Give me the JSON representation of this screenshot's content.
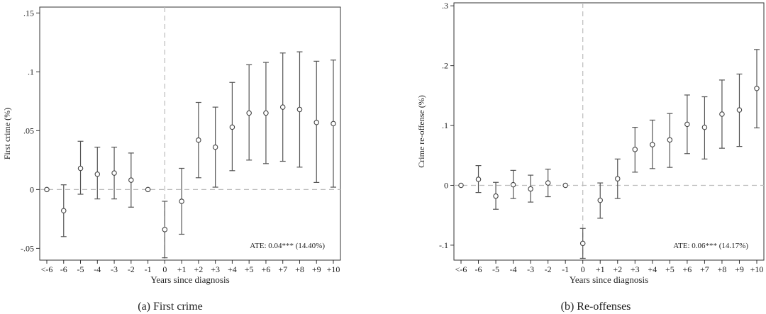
{
  "chart_data": [
    {
      "type": "scatter",
      "subtitle": "(a) First crime",
      "xlabel": "Years since diagnosis",
      "ylabel": "First crime (%)",
      "ylim": [
        -0.06,
        0.155
      ],
      "yticks": [
        -0.05,
        0,
        0.05,
        0.1,
        0.15
      ],
      "ytick_labels": [
        "-.05",
        "0",
        ".05",
        ".1",
        ".15"
      ],
      "categories": [
        "<-6",
        "-6",
        "-5",
        "-4",
        "-3",
        "-2",
        "-1",
        "0",
        "+1",
        "+2",
        "+3",
        "+4",
        "+5",
        "+6",
        "+7",
        "+8",
        "+9",
        "+10"
      ],
      "estimates": [
        0,
        -0.018,
        0.018,
        0.013,
        0.014,
        0.008,
        0,
        -0.034,
        -0.01,
        0.042,
        0.036,
        0.053,
        0.065,
        0.065,
        0.07,
        0.068,
        0.057,
        0.056
      ],
      "ci_low": [
        null,
        -0.04,
        -0.004,
        -0.008,
        -0.008,
        -0.015,
        null,
        -0.058,
        -0.038,
        0.01,
        0.002,
        0.016,
        0.025,
        0.022,
        0.024,
        0.019,
        0.006,
        0.002
      ],
      "ci_high": [
        null,
        0.004,
        0.041,
        0.036,
        0.036,
        0.031,
        null,
        -0.01,
        0.018,
        0.074,
        0.07,
        0.091,
        0.106,
        0.108,
        0.116,
        0.117,
        0.109,
        0.11
      ],
      "reference_x": "0",
      "reference_y": 0,
      "annotation": "ATE: 0.04*** (14.40%)",
      "grid": false
    },
    {
      "type": "scatter",
      "subtitle": "(b) Re-offenses",
      "xlabel": "Years since diagnosis",
      "ylabel": "Crime re-offense (%)",
      "ylim": [
        -0.125,
        0.305
      ],
      "yticks": [
        -0.1,
        0,
        0.1,
        0.2,
        0.3
      ],
      "ytick_labels": [
        "-.1",
        "0",
        ".1",
        ".2",
        ".3"
      ],
      "categories": [
        "<-6",
        "-6",
        "-5",
        "-4",
        "-3",
        "-2",
        "-1",
        "0",
        "+1",
        "+2",
        "+3",
        "+4",
        "+5",
        "+6",
        "+7",
        "+8",
        "+9",
        "+10"
      ],
      "estimates": [
        0,
        0.01,
        -0.018,
        0.001,
        -0.006,
        0.004,
        0,
        -0.097,
        -0.025,
        0.011,
        0.06,
        0.068,
        0.076,
        0.102,
        0.097,
        0.119,
        0.126,
        0.162
      ],
      "ci_low": [
        null,
        -0.012,
        -0.04,
        -0.022,
        -0.028,
        -0.019,
        null,
        -0.122,
        -0.055,
        -0.022,
        0.022,
        0.028,
        0.03,
        0.053,
        0.044,
        0.062,
        0.065,
        0.096
      ],
      "ci_high": [
        null,
        0.033,
        0.005,
        0.025,
        0.017,
        0.027,
        null,
        -0.072,
        0.004,
        0.044,
        0.097,
        0.109,
        0.12,
        0.151,
        0.148,
        0.176,
        0.186,
        0.227
      ],
      "reference_x": "0",
      "reference_y": 0,
      "annotation": "ATE: 0.06*** (14.17%)",
      "grid": false
    }
  ]
}
